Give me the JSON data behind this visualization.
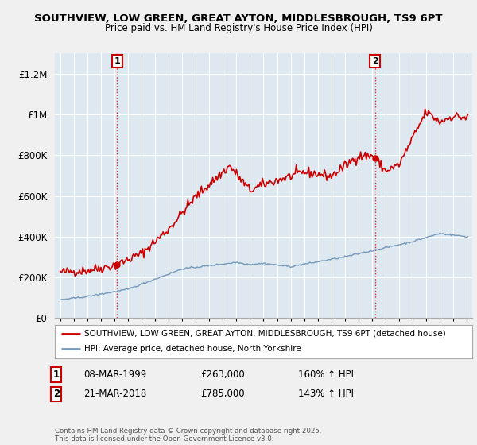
{
  "title1": "SOUTHVIEW, LOW GREEN, GREAT AYTON, MIDDLESBROUGH, TS9 6PT",
  "title2": "Price paid vs. HM Land Registry's House Price Index (HPI)",
  "legend1": "SOUTHVIEW, LOW GREEN, GREAT AYTON, MIDDLESBROUGH, TS9 6PT (detached house)",
  "legend2": "HPI: Average price, detached house, North Yorkshire",
  "sale1_date": "08-MAR-1999",
  "sale1_price": "£263,000",
  "sale1_hpi": "160% ↑ HPI",
  "sale2_date": "21-MAR-2018",
  "sale2_price": "£785,000",
  "sale2_hpi": "143% ↑ HPI",
  "footnote": "Contains HM Land Registry data © Crown copyright and database right 2025.\nThis data is licensed under the Open Government Licence v3.0.",
  "sale1_year": 1999.19,
  "sale1_value": 263000,
  "sale2_year": 2018.22,
  "sale2_value": 785000,
  "red_line_color": "#cc0000",
  "blue_line_color": "#7799bb",
  "plot_bg_color": "#dde8f0",
  "bg_color": "#f0f0f0",
  "grid_color": "#ffffff",
  "ylim": [
    0,
    1300000
  ],
  "xlim_start": 1994.6,
  "xlim_end": 2025.4
}
